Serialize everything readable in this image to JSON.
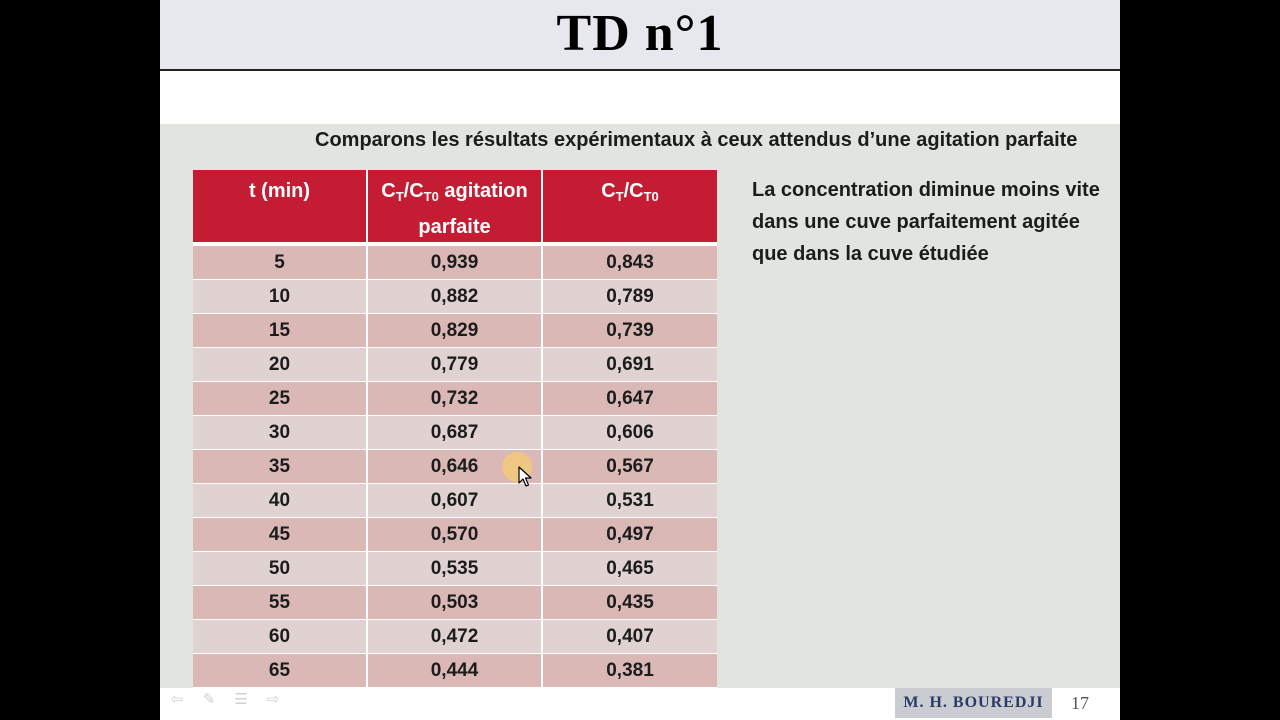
{
  "slide": {
    "title": "TD n°1",
    "subtitle": "Comparons les résultats expérimentaux à ceux attendus d’une agitation parfaite",
    "table": {
      "headers": {
        "col1": "t (min)",
        "col2_prefix": "C",
        "col2_sub1": "T",
        "col2_mid": "/C",
        "col2_sub2": "T0",
        "col2_suffix": " agitation parfaite",
        "col3_prefix": "C",
        "col3_sub1": "T",
        "col3_mid": "/C",
        "col3_sub2": "T0"
      },
      "rows": [
        [
          "5",
          "0,939",
          "0,843"
        ],
        [
          "10",
          "0,882",
          "0,789"
        ],
        [
          "15",
          "0,829",
          "0,739"
        ],
        [
          "20",
          "0,779",
          "0,691"
        ],
        [
          "25",
          "0,732",
          "0,647"
        ],
        [
          "30",
          "0,687",
          "0,606"
        ],
        [
          "35",
          "0,646",
          "0,567"
        ],
        [
          "40",
          "0,607",
          "0,531"
        ],
        [
          "45",
          "0,570",
          "0,497"
        ],
        [
          "50",
          "0,535",
          "0,465"
        ],
        [
          "55",
          "0,503",
          "0,435"
        ],
        [
          "60",
          "0,472",
          "0,407"
        ],
        [
          "65",
          "0,444",
          "0,381"
        ]
      ]
    },
    "note": "La concentration diminue moins vite dans une cuve parfaitement agitée que dans la cuve étudiée",
    "footer": {
      "author": "M. H. BOUREDJI",
      "page_number": "17"
    },
    "nav_icons": [
      "arrow-left-icon",
      "pen-icon",
      "menu-icon",
      "arrow-right-icon"
    ],
    "colors": {
      "header_red": "#c41d33",
      "row_odd": "#d9b8b5",
      "row_even": "#e0d2d0",
      "content_bg": "#e2e4e0",
      "title_bar": "#e6e8ee"
    }
  }
}
